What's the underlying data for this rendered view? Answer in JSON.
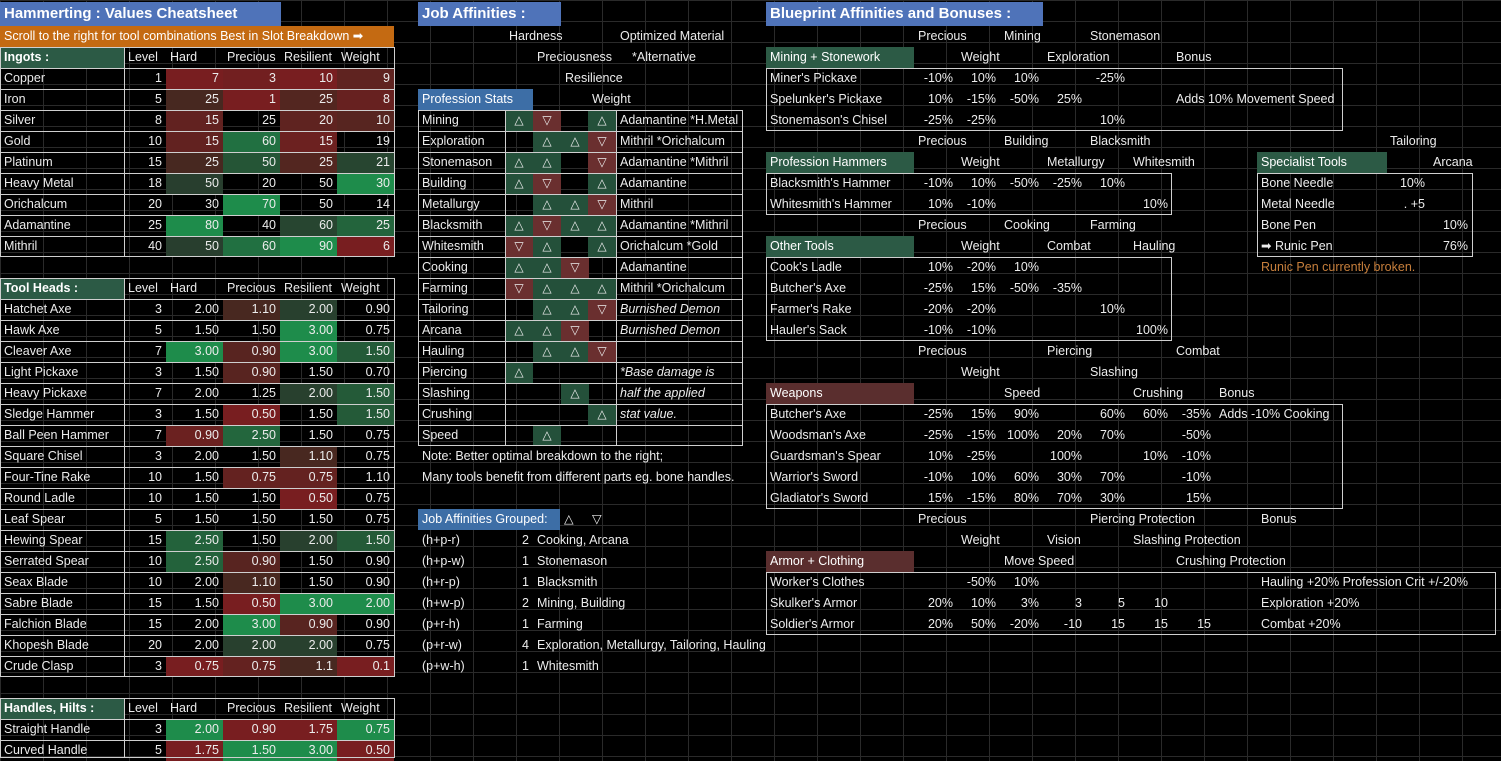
{
  "titles": {
    "cheatsheet": "Hammerting : Values Cheatsheet",
    "scroll": "Scroll to the right for tool combinations Best in Slot Breakdown ➡",
    "job": "Job Affinities :",
    "blueprint": "Blueprint Affinities and Bonuses :"
  },
  "columns": [
    "Level",
    "Hard",
    "Precious",
    "Resilient",
    "Weight"
  ],
  "ingots": {
    "label": "Ingots :",
    "rows": [
      [
        "Copper",
        "1",
        "7",
        "3",
        "10",
        "9"
      ],
      [
        "Iron",
        "5",
        "25",
        "1",
        "25",
        "8"
      ],
      [
        "Silver",
        "8",
        "15",
        "25",
        "20",
        "10"
      ],
      [
        "Gold",
        "10",
        "15",
        "60",
        "15",
        "19"
      ],
      [
        "Platinum",
        "15",
        "25",
        "50",
        "25",
        "21"
      ],
      [
        "Heavy Metal",
        "18",
        "50",
        "20",
        "50",
        "30"
      ],
      [
        "Orichalcum",
        "20",
        "30",
        "70",
        "50",
        "14"
      ],
      [
        "Adamantine",
        "25",
        "80",
        "40",
        "60",
        "25"
      ],
      [
        "Mithril",
        "40",
        "50",
        "60",
        "90",
        "6"
      ]
    ]
  },
  "tool_heads": {
    "label": "Tool Heads :",
    "rows": [
      [
        "Hatchet Axe",
        "3",
        "2.00",
        "1.10",
        "2.00",
        "0.90"
      ],
      [
        "Hawk Axe",
        "5",
        "1.50",
        "1.50",
        "3.00",
        "0.75"
      ],
      [
        "Cleaver Axe",
        "7",
        "3.00",
        "0.90",
        "3.00",
        "1.50"
      ],
      [
        "Light Pickaxe",
        "3",
        "1.50",
        "0.90",
        "1.50",
        "0.70"
      ],
      [
        "Heavy Pickaxe",
        "7",
        "2.00",
        "1.25",
        "2.00",
        "1.50"
      ],
      [
        "Sledge Hammer",
        "3",
        "1.50",
        "0.50",
        "1.50",
        "1.50"
      ],
      [
        "Ball Peen Hammer",
        "7",
        "0.90",
        "2.50",
        "1.50",
        "0.75"
      ],
      [
        "Square Chisel",
        "3",
        "2.00",
        "1.50",
        "1.10",
        "0.75"
      ],
      [
        "Four-Tine Rake",
        "10",
        "1.50",
        "0.75",
        "0.75",
        "1.10"
      ],
      [
        "Round Ladle",
        "10",
        "1.50",
        "1.50",
        "0.50",
        "0.75"
      ],
      [
        "Leaf Spear",
        "5",
        "1.50",
        "1.50",
        "1.50",
        "0.75"
      ],
      [
        "Hewing Spear",
        "15",
        "2.50",
        "1.50",
        "2.00",
        "1.50"
      ],
      [
        "Serrated Spear",
        "10",
        "2.50",
        "0.90",
        "1.50",
        "0.90"
      ],
      [
        "Seax Blade",
        "10",
        "2.00",
        "1.10",
        "1.50",
        "0.90"
      ],
      [
        "Sabre Blade",
        "15",
        "1.50",
        "0.50",
        "3.00",
        "2.00"
      ],
      [
        "Falchion Blade",
        "15",
        "2.00",
        "3.00",
        "0.90",
        "0.90"
      ],
      [
        "Khopesh Blade",
        "20",
        "2.00",
        "2.00",
        "2.00",
        "0.75"
      ],
      [
        "Crude Clasp",
        "3",
        "0.75",
        "0.75",
        "1.1",
        "0.1"
      ]
    ]
  },
  "handles": {
    "label": "Handles, Hilts :",
    "rows": [
      [
        "Straight Handle",
        "3",
        "2.00",
        "0.90",
        "1.75",
        "0.75"
      ],
      [
        "Curved Handle",
        "5",
        "1.75",
        "1.50",
        "3.00",
        "0.50"
      ]
    ]
  },
  "job": {
    "hdr": [
      "Hardness",
      "Optimized Material",
      "Preciousness",
      "*Alternative",
      "Resilience",
      "Weight"
    ],
    "stats_label": "Profession Stats",
    "rows": [
      {
        "n": "Mining",
        "a": [
          "u",
          "d",
          "",
          "u"
        ],
        "m": "Adamantine *H.Metal",
        "i": false
      },
      {
        "n": "Exploration",
        "a": [
          "",
          "u",
          "u",
          "d"
        ],
        "m": "Mithril *Orichalcum",
        "i": false
      },
      {
        "n": "Stonemason",
        "a": [
          "u",
          "u",
          "",
          "d"
        ],
        "m": "Adamantine *Mithril",
        "i": false
      },
      {
        "n": "Building",
        "a": [
          "u",
          "d",
          "",
          "u"
        ],
        "m": "Adamantine",
        "i": false
      },
      {
        "n": "Metallurgy",
        "a": [
          "",
          "u",
          "u",
          "d"
        ],
        "m": "Mithril",
        "i": false
      },
      {
        "n": "Blacksmith",
        "a": [
          "u",
          "d",
          "u",
          "u"
        ],
        "m": "Adamantine *Mithril",
        "i": false
      },
      {
        "n": "Whitesmith",
        "a": [
          "d",
          "u",
          "",
          "u"
        ],
        "m": "Orichalcum *Gold",
        "i": false
      },
      {
        "n": "Cooking",
        "a": [
          "u",
          "u",
          "d",
          ""
        ],
        "m": "Adamantine",
        "i": false
      },
      {
        "n": "Farming",
        "a": [
          "d",
          "u",
          "u",
          "u"
        ],
        "m": "Mithril *Orichalcum",
        "i": false
      },
      {
        "n": "Tailoring",
        "a": [
          "",
          "u",
          "u",
          "d"
        ],
        "m": "Burnished Demon",
        "i": true
      },
      {
        "n": "Arcana",
        "a": [
          "u",
          "u",
          "d",
          ""
        ],
        "m": "Burnished Demon",
        "i": true
      },
      {
        "n": "Hauling",
        "a": [
          "",
          "u",
          "u",
          "d"
        ],
        "m": "",
        "i": false
      },
      {
        "n": "Piercing",
        "a": [
          "u",
          "",
          "",
          ""
        ],
        "m": "*Base damage is",
        "i": true
      },
      {
        "n": "Slashing",
        "a": [
          "",
          "",
          "u",
          ""
        ],
        "m": "half the applied",
        "i": true
      },
      {
        "n": "Crushing",
        "a": [
          "",
          "",
          "",
          "u"
        ],
        "m": "stat value.",
        "i": true
      },
      {
        "n": "Speed",
        "a": [
          "",
          "u",
          "",
          ""
        ],
        "m": "",
        "i": false
      }
    ],
    "note1": "Note: Better optimal breakdown to the right;",
    "note2": "Many tools benefit from different parts eg. bone handles.",
    "grouped_label": "Job Affinities Grouped:",
    "up": "△",
    "down": "▽",
    "grouped": [
      [
        "(h+p-r)",
        "2",
        "Cooking, Arcana"
      ],
      [
        "(h+p-w)",
        "1",
        "Stonemason"
      ],
      [
        "(h+r-p)",
        "1",
        "Blacksmith"
      ],
      [
        "(h+w-p)",
        "2",
        "Mining, Building"
      ],
      [
        "(p+r-h)",
        "1",
        "Farming"
      ],
      [
        "(p+r-w)",
        "4",
        "Exploration, Metallurgy, Tailoring, Hauling"
      ],
      [
        "(p+w-h)",
        "1",
        "Whitesmith"
      ]
    ]
  },
  "bp": {
    "mining": {
      "label": "Mining + Stonework",
      "h1": [
        "Precious",
        "Mining",
        "Stonemason"
      ],
      "h2": [
        "Weight",
        "Exploration",
        "Bonus"
      ],
      "rows": [
        [
          "Miner's Pickaxe",
          "-10%",
          "10%",
          "10%",
          "",
          "-25%",
          ""
        ],
        [
          "Spelunker's Pickaxe",
          "10%",
          "-15%",
          "-50%",
          "25%",
          "",
          "Adds 10% Movement Speed"
        ],
        [
          "Stonemason's Chisel",
          "-25%",
          "-25%",
          "",
          "",
          "10%",
          ""
        ]
      ]
    },
    "hammers": {
      "label": "Profession Hammers",
      "h1": [
        "Precious",
        "Building",
        "Blacksmith"
      ],
      "h2": [
        "Weight",
        "Metallurgy",
        "Whitesmith"
      ],
      "rows": [
        [
          "Blacksmith's Hammer",
          "-10%",
          "10%",
          "-50%",
          "-25%",
          "10%",
          ""
        ],
        [
          "Whitesmith's Hammer",
          "10%",
          "-10%",
          "",
          "",
          "",
          "10%"
        ]
      ]
    },
    "specialist": {
      "label": "Specialist Tools",
      "h1": "Tailoring",
      "h2": "Arcana",
      "rows": [
        [
          "Bone Needle",
          "10%",
          ""
        ],
        [
          "Metal Needle",
          ". +5",
          ""
        ],
        [
          "Bone Pen",
          "",
          "10%"
        ],
        [
          "➡     Runic Pen",
          "",
          "76%"
        ]
      ],
      "note": "Runic Pen currently broken."
    },
    "other": {
      "label": "Other Tools",
      "h1": [
        "Precious",
        "Cooking",
        "Farming"
      ],
      "h2": [
        "Weight",
        "Combat",
        "Hauling"
      ],
      "rows": [
        [
          "Cook's Ladle",
          "10%",
          "-20%",
          "10%",
          "",
          "",
          ""
        ],
        [
          "Butcher's Axe",
          "-25%",
          "15%",
          "-50%",
          "-35%",
          "",
          ""
        ],
        [
          "Farmer's Rake",
          "-20%",
          "-20%",
          "",
          "",
          "10%",
          ""
        ],
        [
          "Hauler's Sack",
          "-10%",
          "-10%",
          "",
          "",
          "",
          "100%"
        ]
      ]
    },
    "weapons": {
      "label": "Weapons",
      "h1": [
        "Precious",
        "Piercing",
        "Combat"
      ],
      "h2": [
        "Weight",
        "Slashing"
      ],
      "h3": [
        "Speed",
        "Crushing",
        "Bonus"
      ],
      "rows": [
        [
          "Butcher's Axe",
          "-25%",
          "15%",
          "90%",
          "",
          "60%",
          "60%",
          "-35%",
          "Adds -10% Cooking"
        ],
        [
          "Woodsman's Axe",
          "-25%",
          "-15%",
          "100%",
          "20%",
          "70%",
          "",
          "-50%",
          ""
        ],
        [
          "Guardsman's Spear",
          "10%",
          "-25%",
          "",
          "100%",
          "",
          "10%",
          "-10%",
          ""
        ],
        [
          "Warrior's Sword",
          "-10%",
          "10%",
          "60%",
          "30%",
          "70%",
          "",
          "-10%",
          ""
        ],
        [
          "Gladiator's Sword",
          "15%",
          "-15%",
          "80%",
          "70%",
          "30%",
          "",
          "15%",
          ""
        ]
      ]
    },
    "armor": {
      "label": "Armor + Clothing",
      "h1": [
        "Precious",
        "Piercing Protection",
        "Bonus"
      ],
      "h2": [
        "Weight",
        "Vision",
        "Slashing Protection"
      ],
      "h3": [
        "Move Speed",
        "Crushing Protection"
      ],
      "rows": [
        [
          "Worker's Clothes",
          "",
          "-50%",
          "10%",
          "",
          "",
          "",
          "",
          "Hauling +20% Profession Crit +/-20%"
        ],
        [
          "Skulker's Armor",
          "20%",
          "10%",
          "3%",
          "3",
          "5",
          "10",
          "",
          "Exploration +20%"
        ],
        [
          "Soldier's Armor",
          "20%",
          "50%",
          "-20%",
          "-10",
          "15",
          "15",
          "15",
          "Combat +20%"
        ]
      ]
    }
  },
  "colors": {
    "title_blue": "#4f73b9",
    "header_green": "#2c5a45",
    "header_red": "#5a2e2e",
    "orange": "#c46a12"
  }
}
